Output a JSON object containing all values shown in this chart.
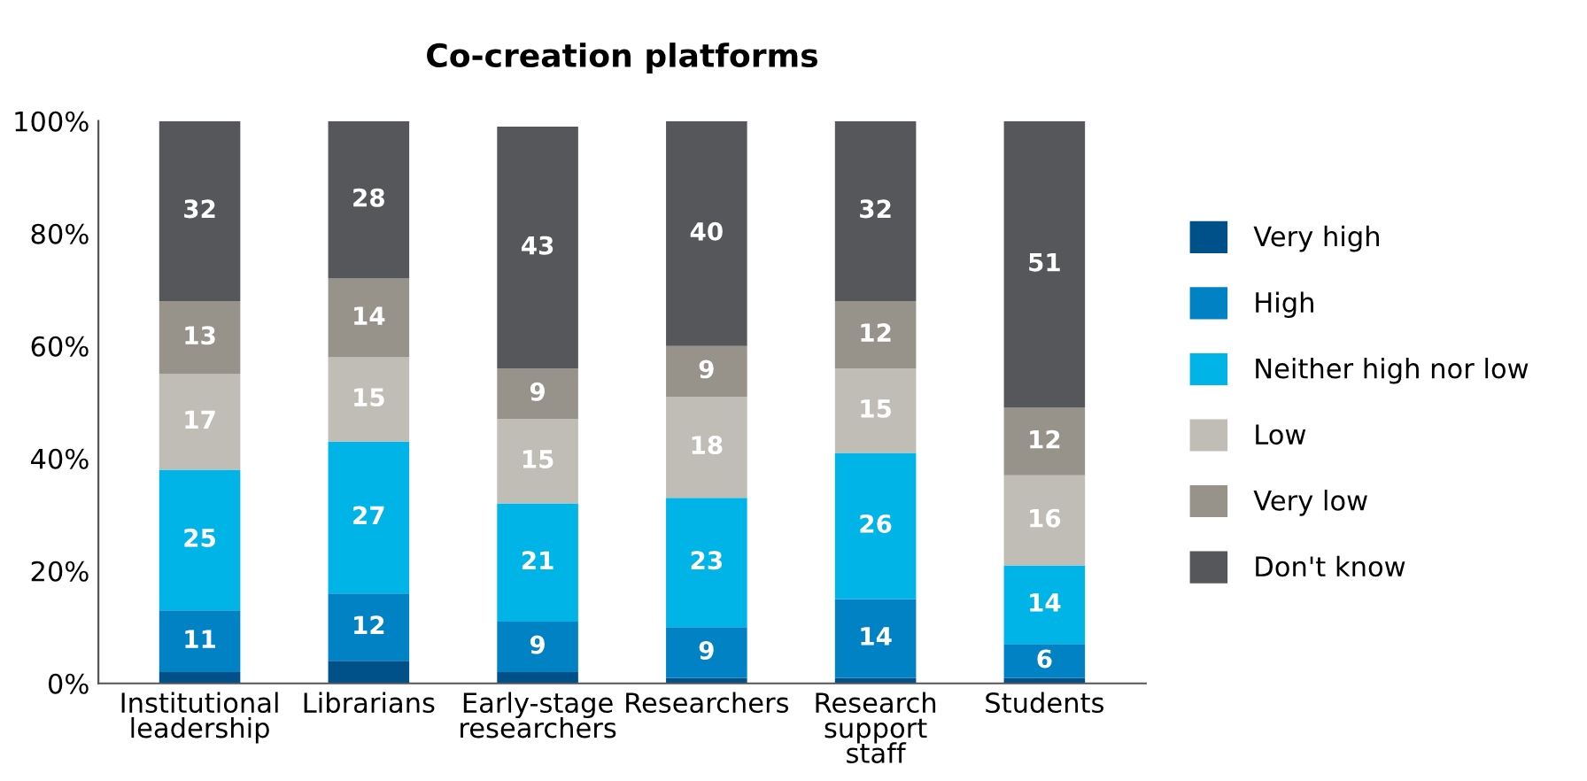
{
  "chart_data": {
    "type": "bar",
    "title": "Co-creation platforms",
    "stacked": true,
    "legend": "right",
    "grid": false,
    "categories": [
      "Institutional\nleadership",
      "Librarians",
      "Early-stage\nresearchers",
      "Researchers",
      "Research\nsupport\nstaff",
      "Students"
    ],
    "ylim": [
      0,
      100
    ],
    "yticks": [
      {
        "value": 0,
        "label": "0%"
      },
      {
        "value": 20,
        "label": "20%"
      },
      {
        "value": 40,
        "label": "40%"
      },
      {
        "value": 60,
        "label": "60%"
      },
      {
        "value": 80,
        "label": "80%"
      },
      {
        "value": 100,
        "label": "100%"
      }
    ],
    "series": [
      {
        "name": "Very high",
        "color": "#00508a",
        "values": [
          2,
          4,
          2,
          1,
          1,
          1
        ],
        "value_labels": [
          null,
          null,
          null,
          null,
          null,
          null
        ]
      },
      {
        "name": "High",
        "color": "#0082c4",
        "values": [
          11,
          12,
          9,
          9,
          14,
          6
        ],
        "value_labels": [
          "11",
          "12",
          "9",
          "9",
          "14",
          "6"
        ]
      },
      {
        "name": "Neither high nor low",
        "color": "#00b4e8",
        "values": [
          25,
          27,
          21,
          23,
          26,
          14
        ],
        "value_labels": [
          "25",
          "27",
          "21",
          "23",
          "26",
          "14"
        ]
      },
      {
        "name": "Low",
        "color": "#c0bdb6",
        "values": [
          17,
          15,
          15,
          18,
          15,
          16
        ],
        "value_labels": [
          "17",
          "15",
          "15",
          "18",
          "15",
          "16"
        ]
      },
      {
        "name": "Very low",
        "color": "#97938b",
        "values": [
          13,
          14,
          9,
          9,
          12,
          12
        ],
        "value_labels": [
          "13",
          "14",
          "9",
          "9",
          "12",
          "12"
        ]
      },
      {
        "name": "Don't know",
        "color": "#56575a",
        "values": [
          32,
          28,
          43,
          40,
          32,
          51
        ],
        "value_labels": [
          "32",
          "28",
          "43",
          "40",
          "32",
          "51"
        ]
      }
    ]
  }
}
